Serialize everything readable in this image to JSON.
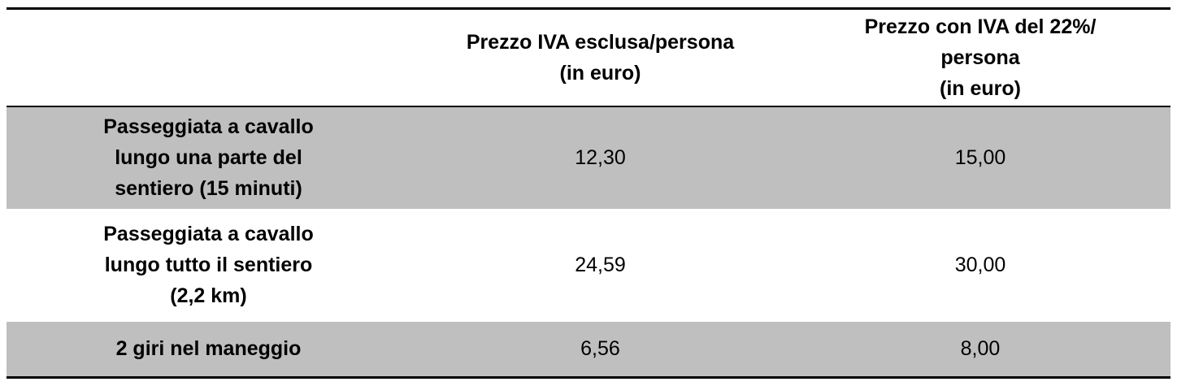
{
  "table": {
    "header": [
      [],
      [
        "Prezzo IVA esclusa/persona",
        "(in euro)"
      ],
      [
        "Prezzo con IVA del 22%/",
        "persona",
        "(in euro)"
      ]
    ],
    "rows": [
      [
        [
          "Passeggiata a cavallo",
          "lungo una parte del",
          "sentiero (15 minuti)"
        ],
        "12,30",
        "15,00"
      ],
      [
        [
          "Passeggiata a cavallo",
          "lungo tutto il sentiero",
          "(2,2 km)"
        ],
        "24,59",
        "30,00"
      ],
      [
        [
          "2 giri nel maneggio"
        ],
        "6,56",
        "8,00"
      ]
    ]
  }
}
